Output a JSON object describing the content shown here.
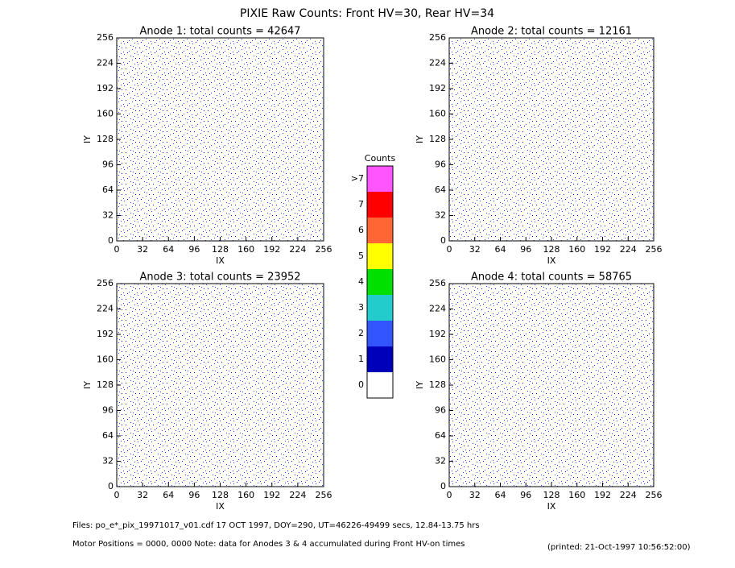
{
  "title": "PIXIE Raw Counts:  Front HV=30, Rear HV=34",
  "chart_data": [
    {
      "type": "heatmap",
      "title": "Anode 1: total counts = 42647",
      "x_label": "IX",
      "y_label": "IY",
      "xlim": [
        0,
        256
      ],
      "ylim": [
        0,
        256
      ],
      "xticks": [
        0,
        32,
        64,
        96,
        128,
        160,
        192,
        224,
        256
      ],
      "yticks": [
        0,
        32,
        64,
        96,
        128,
        160,
        192,
        224,
        256
      ]
    },
    {
      "type": "heatmap",
      "title": "Anode 2: total counts = 12161",
      "x_label": "IX",
      "y_label": "IY",
      "xlim": [
        0,
        256
      ],
      "ylim": [
        0,
        256
      ],
      "xticks": [
        0,
        32,
        64,
        96,
        128,
        160,
        192,
        224,
        256
      ],
      "yticks": [
        0,
        32,
        64,
        96,
        128,
        160,
        192,
        224,
        256
      ]
    },
    {
      "type": "heatmap",
      "title": "Anode 3: total counts = 23952",
      "x_label": "IX",
      "y_label": "IY",
      "xlim": [
        0,
        256
      ],
      "ylim": [
        0,
        256
      ],
      "xticks": [
        0,
        32,
        64,
        96,
        128,
        160,
        192,
        224,
        256
      ],
      "yticks": [
        0,
        32,
        64,
        96,
        128,
        160,
        192,
        224,
        256
      ]
    },
    {
      "type": "heatmap",
      "title": "Anode 4: total counts = 58765",
      "x_label": "IX",
      "y_label": "IY",
      "xlim": [
        0,
        256
      ],
      "ylim": [
        0,
        256
      ],
      "xticks": [
        0,
        32,
        64,
        96,
        128,
        160,
        192,
        224,
        256
      ],
      "yticks": [
        0,
        32,
        64,
        96,
        128,
        160,
        192,
        224,
        256
      ]
    }
  ],
  "colorbar": {
    "title": "Counts",
    "labels": [
      ">7",
      "7",
      "6",
      "5",
      "4",
      "3",
      "2",
      "1",
      "0"
    ],
    "colors": [
      "#ff55ff",
      "#ff0000",
      "#ff6633",
      "#ffff00",
      "#00e000",
      "#22cccc",
      "#3355ff",
      "#0000bb",
      "#ffffff"
    ]
  },
  "footer": {
    "files": "Files: po_e*_pix_19971017_v01.cdf     17 OCT 1997, DOY=290, UT=46226-49499 secs, 12.84-13.75 hrs",
    "motor": "Motor Positions = 0000, 0000    Note: data for Anodes 3 & 4 accumulated during Front HV-on times",
    "printed": "(printed: 21-Oct-1997 10:56:52:00)"
  }
}
